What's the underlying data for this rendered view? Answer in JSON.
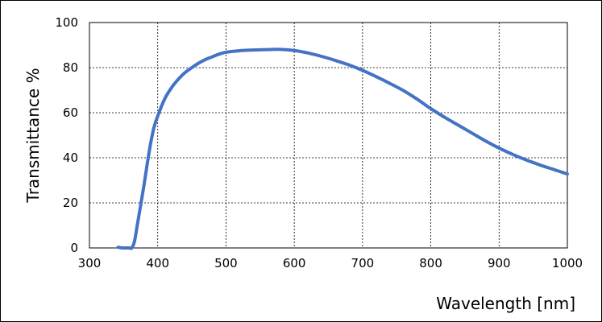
{
  "chart_data": {
    "type": "line",
    "title": "",
    "xlabel": "Wavelength [nm]",
    "ylabel": "Transmittance %",
    "xlim": [
      300,
      1000
    ],
    "ylim": [
      0,
      100
    ],
    "xticks": [
      "300",
      "400",
      "500",
      "600",
      "700",
      "800",
      "900",
      "1000"
    ],
    "yticks": [
      "0",
      "20",
      "40",
      "60",
      "80",
      "100"
    ],
    "grid": true,
    "series": [
      {
        "color": "#4472C4",
        "x": [
          342,
          348,
          358,
          362,
          366,
          370,
          375,
          380,
          385,
          390,
          395,
          400,
          410,
          420,
          430,
          440,
          450,
          460,
          470,
          480,
          490,
          500,
          520,
          540,
          560,
          580,
          600,
          620,
          640,
          660,
          680,
          700,
          720,
          740,
          760,
          780,
          800,
          820,
          840,
          860,
          880,
          900,
          920,
          940,
          960,
          980,
          1000
        ],
        "y": [
          0.3,
          0,
          0,
          0,
          3,
          10,
          19,
          28,
          38,
          47,
          54,
          58.5,
          66,
          71,
          74.8,
          77.8,
          80,
          82,
          83.6,
          84.8,
          86,
          86.8,
          87.5,
          87.8,
          88,
          88.1,
          87.6,
          86.5,
          85,
          83.2,
          81.2,
          78.8,
          76,
          73,
          69.8,
          66,
          61.8,
          58,
          54.5,
          51,
          47.5,
          44.3,
          41.5,
          39,
          36.8,
          34.8,
          32.8
        ]
      }
    ]
  }
}
